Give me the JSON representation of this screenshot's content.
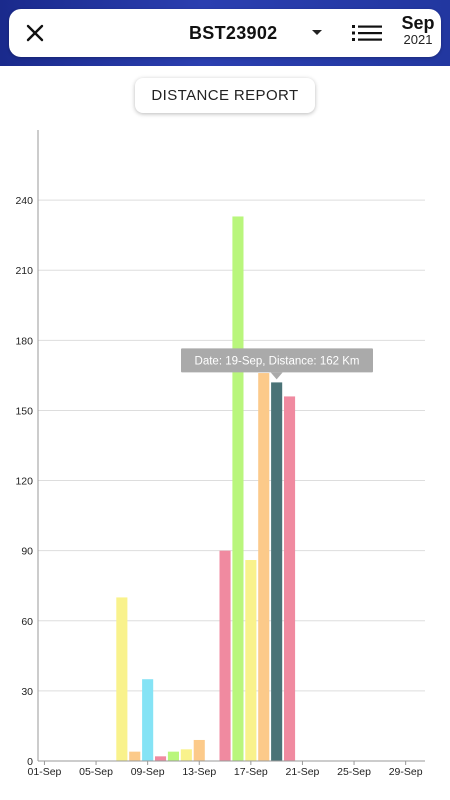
{
  "header": {
    "vehicle": "BST23902",
    "month": "Sep",
    "year": "2021",
    "icons": {
      "close": "close-icon",
      "dropdown": "caret-down-icon",
      "list": "list-icon"
    }
  },
  "report_button": {
    "label": "DISTANCE REPORT"
  },
  "colors": {
    "band": "#2237a0",
    "grid": "#dddddd",
    "axis": "#999999",
    "tooltip_bg": "#aaaaaa"
  },
  "tooltip": {
    "text": "Date: 19-Sep, Distance: 162 Km"
  },
  "chart_data": {
    "type": "bar",
    "categories": [
      "07-Sep",
      "08-Sep",
      "09-Sep",
      "10-Sep",
      "11-Sep",
      "12-Sep",
      "13-Sep",
      "15-Sep",
      "16-Sep",
      "17-Sep",
      "18-Sep",
      "19-Sep",
      "20-Sep"
    ],
    "values": [
      70,
      4,
      35,
      2,
      4,
      5,
      9,
      90,
      233,
      86,
      166,
      162,
      156
    ],
    "colors": [
      "#f9f28c",
      "#fcca8a",
      "#85e3f5",
      "#f08aa0",
      "#b9f67c",
      "#f9f28c",
      "#fcca8a",
      "#f08aa0",
      "#b9f67c",
      "#f9f28c",
      "#fcca8a",
      "#4a7377",
      "#f08aa0"
    ],
    "x_tick_labels": [
      "01-Sep",
      "05-Sep",
      "09-Sep",
      "13-Sep",
      "17-Sep",
      "21-Sep",
      "25-Sep",
      "29-Sep"
    ],
    "y_ticks": [
      0,
      30,
      60,
      90,
      120,
      150,
      180,
      210,
      240
    ],
    "ylim": [
      0,
      270
    ],
    "x_range": [
      "01-Sep",
      "30-Sep"
    ],
    "grid": true,
    "highlighted_category": "19-Sep"
  }
}
